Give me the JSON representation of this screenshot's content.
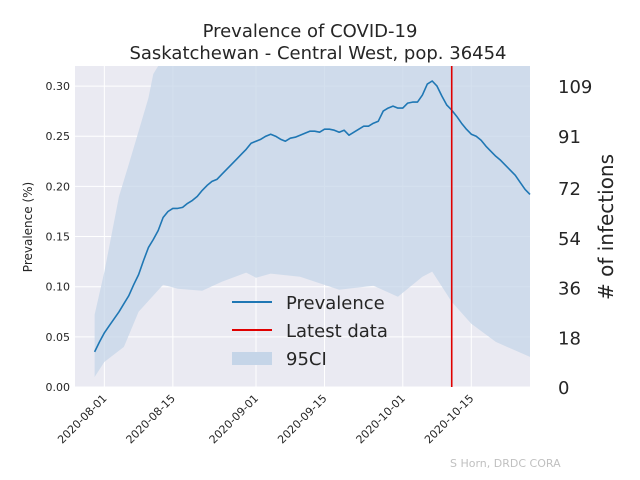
{
  "chart_data": {
    "type": "line",
    "title_line1": "Prevalence of COVID-19",
    "title_line2": "Saskatchewan - Central West, pop. 36454",
    "ylabel": "Prevalence (%)",
    "y2label": "# of infections",
    "credit": "S Horn, DRDC CORA",
    "ylim": [
      0,
      0.32
    ],
    "y_ticks": [
      0.0,
      0.05,
      0.1,
      0.15,
      0.2,
      0.25,
      0.3
    ],
    "y_tick_labels": [
      "0.00",
      "0.05",
      "0.10",
      "0.15",
      "0.20",
      "0.25",
      "0.30"
    ],
    "y2_ticks": [
      0,
      18,
      36,
      54,
      72,
      91,
      109
    ],
    "y2_tick_labels": [
      "0",
      "18",
      "36",
      "54",
      "72",
      "91",
      "109"
    ],
    "xlim": [
      "2020-07-26",
      "2020-10-27"
    ],
    "x_ticks": [
      "2020-08-01",
      "2020-08-15",
      "2020-09-01",
      "2020-09-15",
      "2020-10-01",
      "2020-10-15"
    ],
    "x_tick_labels": [
      "2020-08-01",
      "2020-08-15",
      "2020-09-01",
      "2020-09-15",
      "2020-10-01",
      "2020-10-15"
    ],
    "grid": true,
    "legend_position": "center",
    "colors": {
      "line": "#1f77b4",
      "latest": "#e00000",
      "band": "#c5d5e8",
      "plot_bg": "#eaeaf2",
      "grid": "#ffffff"
    },
    "latest_data_date": "2020-10-11",
    "series": [
      {
        "name": "Prevalence",
        "points": [
          [
            "2020-07-30",
            0.035
          ],
          [
            "2020-07-31",
            0.045
          ],
          [
            "2020-08-01",
            0.054
          ],
          [
            "2020-08-02",
            0.061
          ],
          [
            "2020-08-03",
            0.068
          ],
          [
            "2020-08-04",
            0.075
          ],
          [
            "2020-08-05",
            0.083
          ],
          [
            "2020-08-06",
            0.091
          ],
          [
            "2020-08-07",
            0.102
          ],
          [
            "2020-08-08",
            0.112
          ],
          [
            "2020-08-09",
            0.126
          ],
          [
            "2020-08-10",
            0.139
          ],
          [
            "2020-08-11",
            0.147
          ],
          [
            "2020-08-12",
            0.156
          ],
          [
            "2020-08-13",
            0.169
          ],
          [
            "2020-08-14",
            0.175
          ],
          [
            "2020-08-15",
            0.178
          ],
          [
            "2020-08-16",
            0.178
          ],
          [
            "2020-08-17",
            0.179
          ],
          [
            "2020-08-18",
            0.183
          ],
          [
            "2020-08-19",
            0.186
          ],
          [
            "2020-08-20",
            0.19
          ],
          [
            "2020-08-21",
            0.196
          ],
          [
            "2020-08-22",
            0.201
          ],
          [
            "2020-08-23",
            0.205
          ],
          [
            "2020-08-24",
            0.207
          ],
          [
            "2020-08-25",
            0.212
          ],
          [
            "2020-08-26",
            0.217
          ],
          [
            "2020-08-27",
            0.222
          ],
          [
            "2020-08-28",
            0.227
          ],
          [
            "2020-08-29",
            0.232
          ],
          [
            "2020-08-30",
            0.237
          ],
          [
            "2020-08-31",
            0.243
          ],
          [
            "2020-09-01",
            0.245
          ],
          [
            "2020-09-02",
            0.247
          ],
          [
            "2020-09-03",
            0.25
          ],
          [
            "2020-09-04",
            0.252
          ],
          [
            "2020-09-05",
            0.25
          ],
          [
            "2020-09-06",
            0.247
          ],
          [
            "2020-09-07",
            0.245
          ],
          [
            "2020-09-08",
            0.248
          ],
          [
            "2020-09-09",
            0.249
          ],
          [
            "2020-09-10",
            0.251
          ],
          [
            "2020-09-11",
            0.253
          ],
          [
            "2020-09-12",
            0.255
          ],
          [
            "2020-09-13",
            0.255
          ],
          [
            "2020-09-14",
            0.254
          ],
          [
            "2020-09-15",
            0.257
          ],
          [
            "2020-09-16",
            0.257
          ],
          [
            "2020-09-17",
            0.256
          ],
          [
            "2020-09-18",
            0.254
          ],
          [
            "2020-09-19",
            0.256
          ],
          [
            "2020-09-20",
            0.251
          ],
          [
            "2020-09-21",
            0.254
          ],
          [
            "2020-09-22",
            0.257
          ],
          [
            "2020-09-23",
            0.26
          ],
          [
            "2020-09-24",
            0.26
          ],
          [
            "2020-09-25",
            0.263
          ],
          [
            "2020-09-26",
            0.265
          ],
          [
            "2020-09-27",
            0.275
          ],
          [
            "2020-09-28",
            0.278
          ],
          [
            "2020-09-29",
            0.28
          ],
          [
            "2020-09-30",
            0.278
          ],
          [
            "2020-10-01",
            0.278
          ],
          [
            "2020-10-02",
            0.283
          ],
          [
            "2020-10-03",
            0.284
          ],
          [
            "2020-10-04",
            0.284
          ],
          [
            "2020-10-05",
            0.291
          ],
          [
            "2020-10-06",
            0.302
          ],
          [
            "2020-10-07",
            0.305
          ],
          [
            "2020-10-08",
            0.3
          ],
          [
            "2020-10-09",
            0.29
          ],
          [
            "2020-10-10",
            0.281
          ],
          [
            "2020-10-11",
            0.276
          ],
          [
            "2020-10-12",
            0.27
          ],
          [
            "2020-10-13",
            0.263
          ],
          [
            "2020-10-14",
            0.257
          ],
          [
            "2020-10-15",
            0.252
          ],
          [
            "2020-10-16",
            0.25
          ],
          [
            "2020-10-17",
            0.246
          ],
          [
            "2020-10-18",
            0.24
          ],
          [
            "2020-10-19",
            0.235
          ],
          [
            "2020-10-20",
            0.23
          ],
          [
            "2020-10-21",
            0.226
          ],
          [
            "2020-10-22",
            0.221
          ],
          [
            "2020-10-23",
            0.216
          ],
          [
            "2020-10-24",
            0.211
          ],
          [
            "2020-10-25",
            0.204
          ],
          [
            "2020-10-26",
            0.197
          ],
          [
            "2020-10-27",
            0.192
          ]
        ]
      },
      {
        "name": "Latest data"
      },
      {
        "name": "95CI",
        "upper": [
          [
            "2020-07-30",
            0.072
          ],
          [
            "2020-08-01",
            0.115
          ],
          [
            "2020-08-04",
            0.19
          ],
          [
            "2020-08-06",
            0.222
          ],
          [
            "2020-08-08",
            0.255
          ],
          [
            "2020-08-10",
            0.288
          ],
          [
            "2020-08-11",
            0.312
          ],
          [
            "2020-08-12",
            0.32
          ],
          [
            "2020-10-27",
            0.32
          ]
        ],
        "lower": [
          [
            "2020-07-30",
            0.01
          ],
          [
            "2020-08-01",
            0.025
          ],
          [
            "2020-08-05",
            0.04
          ],
          [
            "2020-08-08",
            0.075
          ],
          [
            "2020-08-13",
            0.102
          ],
          [
            "2020-08-16",
            0.098
          ],
          [
            "2020-08-21",
            0.096
          ],
          [
            "2020-08-25",
            0.105
          ],
          [
            "2020-08-30",
            0.114
          ],
          [
            "2020-09-01",
            0.109
          ],
          [
            "2020-09-04",
            0.113
          ],
          [
            "2020-09-10",
            0.11
          ],
          [
            "2020-09-18",
            0.097
          ],
          [
            "2020-09-25",
            0.101
          ],
          [
            "2020-09-30",
            0.09
          ],
          [
            "2020-10-05",
            0.11
          ],
          [
            "2020-10-07",
            0.115
          ],
          [
            "2020-10-11",
            0.085
          ],
          [
            "2020-10-15",
            0.063
          ],
          [
            "2020-10-20",
            0.045
          ],
          [
            "2020-10-27",
            0.03
          ]
        ]
      }
    ]
  }
}
